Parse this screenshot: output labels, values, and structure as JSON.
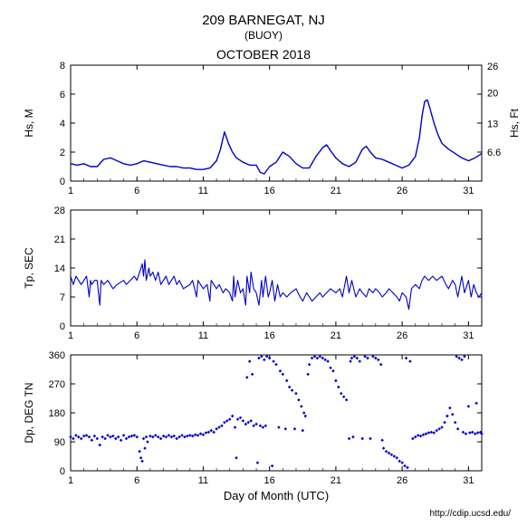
{
  "title_main": "209 BARNEGAT, NJ",
  "title_sub": "(BUOY)",
  "title_month": "OCTOBER 2018",
  "footer_url": "http://cdip.ucsd.edu/",
  "xaxis": {
    "label": "Day of Month (UTC)",
    "min": 1,
    "max": 32,
    "ticks": [
      1,
      6,
      11,
      16,
      21,
      26,
      31
    ]
  },
  "panel1": {
    "ylabel_left": "Hs, M",
    "ylabel_right": "Hs, Ft",
    "ylim_left": [
      0,
      8
    ],
    "yticks_left": [
      0,
      2,
      4,
      6,
      8
    ],
    "yticks_right": [
      6.6,
      13,
      20,
      26
    ],
    "line_color": "#0000cc",
    "line_width": 1.4,
    "background_color": "#ffffff",
    "type": "line",
    "series": [
      [
        1,
        1.2
      ],
      [
        1.5,
        1.1
      ],
      [
        2,
        1.2
      ],
      [
        2.5,
        1.0
      ],
      [
        3,
        1.0
      ],
      [
        3.5,
        1.5
      ],
      [
        4,
        1.6
      ],
      [
        4.5,
        1.4
      ],
      [
        5,
        1.2
      ],
      [
        5.5,
        1.1
      ],
      [
        6,
        1.2
      ],
      [
        6.5,
        1.4
      ],
      [
        7,
        1.3
      ],
      [
        7.5,
        1.2
      ],
      [
        8,
        1.1
      ],
      [
        8.5,
        1.0
      ],
      [
        9,
        1.0
      ],
      [
        9.5,
        0.9
      ],
      [
        10,
        0.9
      ],
      [
        10.5,
        0.8
      ],
      [
        11,
        0.8
      ],
      [
        11.5,
        0.9
      ],
      [
        12,
        1.4
      ],
      [
        12.3,
        2.2
      ],
      [
        12.6,
        3.4
      ],
      [
        12.9,
        2.6
      ],
      [
        13.2,
        2.0
      ],
      [
        13.5,
        1.6
      ],
      [
        14,
        1.3
      ],
      [
        14.5,
        1.1
      ],
      [
        15,
        1.1
      ],
      [
        15.3,
        0.6
      ],
      [
        15.6,
        0.5
      ],
      [
        16,
        1.0
      ],
      [
        16.5,
        1.3
      ],
      [
        17,
        2.0
      ],
      [
        17.5,
        1.7
      ],
      [
        18,
        1.2
      ],
      [
        18.5,
        0.9
      ],
      [
        19,
        0.9
      ],
      [
        19.5,
        1.7
      ],
      [
        20,
        2.3
      ],
      [
        20.3,
        2.5
      ],
      [
        20.6,
        2.1
      ],
      [
        21,
        1.6
      ],
      [
        21.5,
        1.2
      ],
      [
        22,
        1.0
      ],
      [
        22.5,
        1.3
      ],
      [
        23,
        2.2
      ],
      [
        23.3,
        2.4
      ],
      [
        23.6,
        2.0
      ],
      [
        24,
        1.6
      ],
      [
        24.5,
        1.5
      ],
      [
        25,
        1.3
      ],
      [
        25.5,
        1.1
      ],
      [
        26,
        0.9
      ],
      [
        26.5,
        1.1
      ],
      [
        27,
        1.7
      ],
      [
        27.3,
        3.0
      ],
      [
        27.5,
        4.5
      ],
      [
        27.7,
        5.5
      ],
      [
        27.9,
        5.6
      ],
      [
        28.1,
        5.0
      ],
      [
        28.4,
        4.0
      ],
      [
        28.7,
        3.2
      ],
      [
        29,
        2.6
      ],
      [
        29.5,
        2.2
      ],
      [
        30,
        1.9
      ],
      [
        30.5,
        1.6
      ],
      [
        31,
        1.4
      ],
      [
        31.5,
        1.6
      ],
      [
        32,
        1.9
      ]
    ]
  },
  "panel2": {
    "ylabel_left": "Tp, SEC",
    "ylim_left": [
      0,
      28
    ],
    "yticks_left": [
      0,
      7,
      14,
      21,
      28
    ],
    "line_color": "#0000cc",
    "line_width": 1.1,
    "background_color": "#ffffff",
    "type": "line",
    "series": [
      [
        1,
        12
      ],
      [
        1.2,
        10
      ],
      [
        1.4,
        12
      ],
      [
        1.6,
        11
      ],
      [
        1.8,
        10
      ],
      [
        2,
        11
      ],
      [
        2.2,
        12
      ],
      [
        2.4,
        7
      ],
      [
        2.5,
        11
      ],
      [
        2.6,
        10
      ],
      [
        2.8,
        11
      ],
      [
        3,
        11
      ],
      [
        3.2,
        5
      ],
      [
        3.3,
        11
      ],
      [
        3.5,
        10
      ],
      [
        3.8,
        11
      ],
      [
        4,
        10
      ],
      [
        4.2,
        9
      ],
      [
        4.5,
        10
      ],
      [
        5,
        11
      ],
      [
        5.2,
        10
      ],
      [
        5.5,
        11
      ],
      [
        5.8,
        12
      ],
      [
        6,
        11
      ],
      [
        6.2,
        13
      ],
      [
        6.4,
        15
      ],
      [
        6.5,
        12
      ],
      [
        6.6,
        16
      ],
      [
        6.7,
        11
      ],
      [
        6.9,
        14
      ],
      [
        7,
        12
      ],
      [
        7.2,
        13
      ],
      [
        7.4,
        11
      ],
      [
        7.6,
        13
      ],
      [
        7.8,
        10
      ],
      [
        8,
        11
      ],
      [
        8.2,
        12
      ],
      [
        8.4,
        10
      ],
      [
        8.6,
        11
      ],
      [
        8.8,
        12
      ],
      [
        9,
        10
      ],
      [
        9.2,
        11
      ],
      [
        9.5,
        9
      ],
      [
        10,
        10
      ],
      [
        10.2,
        11
      ],
      [
        10.5,
        7
      ],
      [
        10.6,
        11
      ],
      [
        10.8,
        10
      ],
      [
        11,
        9
      ],
      [
        11.3,
        10
      ],
      [
        11.5,
        6
      ],
      [
        11.6,
        11
      ],
      [
        11.8,
        10
      ],
      [
        12,
        9
      ],
      [
        12.2,
        10
      ],
      [
        12.5,
        8
      ],
      [
        12.7,
        9
      ],
      [
        13,
        8
      ],
      [
        13.2,
        6
      ],
      [
        13.3,
        12
      ],
      [
        13.4,
        7
      ],
      [
        13.6,
        11
      ],
      [
        13.8,
        8
      ],
      [
        14,
        9
      ],
      [
        14.2,
        5
      ],
      [
        14.3,
        12
      ],
      [
        14.5,
        8
      ],
      [
        14.6,
        13
      ],
      [
        14.8,
        9
      ],
      [
        15,
        8
      ],
      [
        15.2,
        5
      ],
      [
        15.4,
        11
      ],
      [
        15.5,
        7
      ],
      [
        15.7,
        12
      ],
      [
        15.9,
        7
      ],
      [
        16,
        8
      ],
      [
        16.2,
        11
      ],
      [
        16.4,
        6
      ],
      [
        16.6,
        10
      ],
      [
        16.8,
        7
      ],
      [
        17,
        8
      ],
      [
        17.3,
        7
      ],
      [
        17.6,
        8
      ],
      [
        18,
        9
      ],
      [
        18.3,
        7
      ],
      [
        18.5,
        6
      ],
      [
        18.8,
        8
      ],
      [
        19,
        7
      ],
      [
        19.2,
        6
      ],
      [
        19.5,
        7
      ],
      [
        19.8,
        8
      ],
      [
        20,
        7
      ],
      [
        20.3,
        8
      ],
      [
        20.6,
        9
      ],
      [
        21,
        8
      ],
      [
        21.3,
        9
      ],
      [
        21.5,
        7
      ],
      [
        21.8,
        12
      ],
      [
        22,
        8
      ],
      [
        22.2,
        11
      ],
      [
        22.5,
        7
      ],
      [
        22.8,
        9
      ],
      [
        23,
        8
      ],
      [
        23.3,
        7
      ],
      [
        23.5,
        9
      ],
      [
        23.8,
        8
      ],
      [
        24,
        9
      ],
      [
        24.3,
        8
      ],
      [
        24.5,
        7
      ],
      [
        24.8,
        8
      ],
      [
        25,
        9
      ],
      [
        25.3,
        8
      ],
      [
        25.6,
        7
      ],
      [
        25.8,
        6
      ],
      [
        26,
        8
      ],
      [
        26.3,
        7
      ],
      [
        26.5,
        4
      ],
      [
        26.7,
        9
      ],
      [
        27,
        10
      ],
      [
        27.3,
        9
      ],
      [
        27.5,
        11
      ],
      [
        27.7,
        12
      ],
      [
        28,
        11
      ],
      [
        28.3,
        12
      ],
      [
        28.6,
        11
      ],
      [
        29,
        12
      ],
      [
        29.3,
        10
      ],
      [
        29.5,
        9
      ],
      [
        29.8,
        11
      ],
      [
        30,
        10
      ],
      [
        30.2,
        7
      ],
      [
        30.5,
        12
      ],
      [
        30.7,
        8
      ],
      [
        31,
        11
      ],
      [
        31.2,
        7
      ],
      [
        31.4,
        10
      ],
      [
        31.6,
        8
      ],
      [
        31.8,
        7
      ],
      [
        32,
        8
      ]
    ]
  },
  "panel3": {
    "ylabel_left": "Dp, DEG TN",
    "ylim_left": [
      0,
      360
    ],
    "yticks_left": [
      0,
      90,
      180,
      270,
      360
    ],
    "marker_color": "#0000cc",
    "marker_size": 2.5,
    "background_color": "#ffffff",
    "type": "scatter",
    "series": [
      [
        1,
        105
      ],
      [
        1.2,
        100
      ],
      [
        1.4,
        110
      ],
      [
        1.6,
        105
      ],
      [
        1.8,
        100
      ],
      [
        2,
        108
      ],
      [
        2.2,
        110
      ],
      [
        2.4,
        105
      ],
      [
        2.6,
        95
      ],
      [
        2.8,
        108
      ],
      [
        3,
        100
      ],
      [
        3.2,
        80
      ],
      [
        3.4,
        105
      ],
      [
        3.6,
        100
      ],
      [
        3.8,
        110
      ],
      [
        4,
        105
      ],
      [
        4.2,
        108
      ],
      [
        4.4,
        100
      ],
      [
        4.6,
        105
      ],
      [
        4.8,
        95
      ],
      [
        5,
        110
      ],
      [
        5.2,
        100
      ],
      [
        5.4,
        105
      ],
      [
        5.6,
        108
      ],
      [
        5.8,
        110
      ],
      [
        6,
        105
      ],
      [
        6.2,
        60
      ],
      [
        6.3,
        40
      ],
      [
        6.4,
        30
      ],
      [
        6.5,
        100
      ],
      [
        6.6,
        70
      ],
      [
        6.7,
        105
      ],
      [
        6.8,
        90
      ],
      [
        7,
        108
      ],
      [
        7.2,
        105
      ],
      [
        7.4,
        110
      ],
      [
        7.6,
        105
      ],
      [
        7.8,
        100
      ],
      [
        8,
        108
      ],
      [
        8.2,
        105
      ],
      [
        8.4,
        110
      ],
      [
        8.6,
        105
      ],
      [
        8.8,
        108
      ],
      [
        9,
        100
      ],
      [
        9.2,
        105
      ],
      [
        9.4,
        110
      ],
      [
        9.6,
        105
      ],
      [
        9.8,
        108
      ],
      [
        10,
        110
      ],
      [
        10.2,
        108
      ],
      [
        10.4,
        112
      ],
      [
        10.6,
        110
      ],
      [
        10.8,
        115
      ],
      [
        11,
        112
      ],
      [
        11.2,
        118
      ],
      [
        11.4,
        120
      ],
      [
        11.6,
        125
      ],
      [
        11.8,
        120
      ],
      [
        12,
        130
      ],
      [
        12.2,
        135
      ],
      [
        12.4,
        140
      ],
      [
        12.6,
        150
      ],
      [
        12.8,
        155
      ],
      [
        13,
        160
      ],
      [
        13.2,
        170
      ],
      [
        13.4,
        135
      ],
      [
        13.5,
        40
      ],
      [
        13.6,
        160
      ],
      [
        13.8,
        165
      ],
      [
        14,
        155
      ],
      [
        14.2,
        145
      ],
      [
        14.3,
        290
      ],
      [
        14.4,
        150
      ],
      [
        14.5,
        340
      ],
      [
        14.6,
        155
      ],
      [
        14.7,
        300
      ],
      [
        14.8,
        140
      ],
      [
        15,
        145
      ],
      [
        15.1,
        25
      ],
      [
        15.2,
        350
      ],
      [
        15.3,
        140
      ],
      [
        15.4,
        355
      ],
      [
        15.5,
        135
      ],
      [
        15.6,
        345
      ],
      [
        15.7,
        140
      ],
      [
        15.8,
        355
      ],
      [
        16,
        350
      ],
      [
        16.2,
        15
      ],
      [
        16.3,
        340
      ],
      [
        16.5,
        330
      ],
      [
        16.7,
        135
      ],
      [
        16.8,
        310
      ],
      [
        17,
        300
      ],
      [
        17.2,
        130
      ],
      [
        17.3,
        280
      ],
      [
        17.5,
        260
      ],
      [
        17.7,
        250
      ],
      [
        17.9,
        130
      ],
      [
        18,
        240
      ],
      [
        18.2,
        220
      ],
      [
        18.4,
        200
      ],
      [
        18.5,
        125
      ],
      [
        18.6,
        180
      ],
      [
        18.7,
        170
      ],
      [
        18.9,
        300
      ],
      [
        19,
        330
      ],
      [
        19.2,
        350
      ],
      [
        19.4,
        355
      ],
      [
        19.6,
        350
      ],
      [
        19.8,
        355
      ],
      [
        20,
        350
      ],
      [
        20.2,
        345
      ],
      [
        20.4,
        340
      ],
      [
        20.6,
        320
      ],
      [
        20.8,
        310
      ],
      [
        21,
        280
      ],
      [
        21.2,
        260
      ],
      [
        21.4,
        240
      ],
      [
        21.6,
        230
      ],
      [
        21.8,
        220
      ],
      [
        22,
        100
      ],
      [
        22.1,
        340
      ],
      [
        22.2,
        350
      ],
      [
        22.3,
        105
      ],
      [
        22.4,
        355
      ],
      [
        22.6,
        350
      ],
      [
        22.8,
        340
      ],
      [
        23,
        100
      ],
      [
        23.2,
        355
      ],
      [
        23.4,
        350
      ],
      [
        23.6,
        100
      ],
      [
        23.8,
        355
      ],
      [
        24,
        350
      ],
      [
        24.2,
        345
      ],
      [
        24.4,
        330
      ],
      [
        24.5,
        95
      ],
      [
        24.6,
        70
      ],
      [
        24.8,
        60
      ],
      [
        25,
        55
      ],
      [
        25.2,
        50
      ],
      [
        25.4,
        45
      ],
      [
        25.6,
        40
      ],
      [
        25.8,
        30
      ],
      [
        26,
        25
      ],
      [
        26.2,
        15
      ],
      [
        26.3,
        350
      ],
      [
        26.4,
        10
      ],
      [
        26.6,
        340
      ],
      [
        26.8,
        100
      ],
      [
        27,
        105
      ],
      [
        27.2,
        110
      ],
      [
        27.4,
        108
      ],
      [
        27.6,
        112
      ],
      [
        27.8,
        115
      ],
      [
        28,
        118
      ],
      [
        28.2,
        120
      ],
      [
        28.4,
        118
      ],
      [
        28.6,
        125
      ],
      [
        28.8,
        130
      ],
      [
        29,
        135
      ],
      [
        29.2,
        150
      ],
      [
        29.4,
        170
      ],
      [
        29.6,
        195
      ],
      [
        29.8,
        175
      ],
      [
        30,
        150
      ],
      [
        30.1,
        355
      ],
      [
        30.2,
        130
      ],
      [
        30.3,
        350
      ],
      [
        30.5,
        345
      ],
      [
        30.6,
        120
      ],
      [
        30.7,
        355
      ],
      [
        30.8,
        115
      ],
      [
        31,
        200
      ],
      [
        31.1,
        118
      ],
      [
        31.3,
        120
      ],
      [
        31.5,
        115
      ],
      [
        31.6,
        210
      ],
      [
        31.7,
        118
      ],
      [
        31.9,
        120
      ],
      [
        32,
        115
      ]
    ]
  }
}
